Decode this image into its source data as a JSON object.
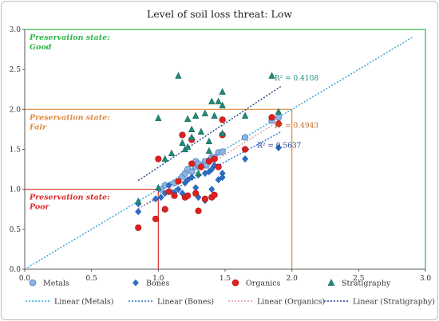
{
  "chart_data": {
    "type": "scatter",
    "title": "Level of soil loss threat: Low",
    "xlabel": "",
    "ylabel": "",
    "xlim": [
      0.0,
      3.0
    ],
    "ylim": [
      0.0,
      3.0
    ],
    "x_ticks": [
      "0.0",
      "0.5",
      "1.0",
      "1.5",
      "2.0",
      "2.5",
      "3.0"
    ],
    "y_ticks": [
      "0.0",
      "0.5",
      "1.0",
      "1.5",
      "2.0",
      "2.5",
      "3.0"
    ],
    "grid": false,
    "legend_position": "bottom",
    "zones": [
      {
        "label_line1": "Preservation state:",
        "label_line2": "Good",
        "limit": 3.0,
        "color": "#2db84a"
      },
      {
        "label_line1": "Preservation state:",
        "label_line2": "Fair",
        "limit": 2.0,
        "color": "#e08a3c"
      },
      {
        "label_line1": "Preservation state:",
        "label_line2": "Poor",
        "limit": 1.0,
        "color": "#d92b2b"
      }
    ],
    "series": [
      {
        "name": "Metals",
        "marker": "circle",
        "color": "#8db3e2",
        "stroke": "#2f6fb5",
        "points": [
          [
            1.02,
            1.0
          ],
          [
            1.05,
            1.05
          ],
          [
            1.12,
            1.08
          ],
          [
            1.18,
            1.16
          ],
          [
            1.2,
            1.2
          ],
          [
            1.22,
            1.25
          ],
          [
            1.25,
            1.22
          ],
          [
            1.28,
            1.28
          ],
          [
            1.3,
            1.3
          ],
          [
            1.32,
            1.3
          ],
          [
            1.35,
            1.35
          ],
          [
            1.38,
            1.36
          ],
          [
            1.4,
            1.4
          ],
          [
            1.42,
            1.4
          ],
          [
            1.45,
            1.46
          ],
          [
            1.48,
            1.47
          ],
          [
            1.65,
            1.65
          ],
          [
            1.85,
            1.86
          ],
          [
            1.9,
            1.9
          ],
          [
            1.28,
            1.35
          ],
          [
            1.3,
            1.32
          ],
          [
            1.36,
            1.3
          ]
        ]
      },
      {
        "name": "Bones",
        "marker": "diamond",
        "color": "#2a6fc9",
        "stroke": "#1c4f94",
        "points": [
          [
            0.85,
            0.72
          ],
          [
            0.85,
            0.82
          ],
          [
            0.98,
            0.88
          ],
          [
            1.02,
            0.9
          ],
          [
            1.05,
            0.95
          ],
          [
            1.08,
            1.05
          ],
          [
            1.12,
            0.96
          ],
          [
            1.15,
            1.0
          ],
          [
            1.18,
            0.95
          ],
          [
            1.2,
            1.08
          ],
          [
            1.22,
            1.12
          ],
          [
            1.25,
            1.15
          ],
          [
            1.28,
            1.02
          ],
          [
            1.3,
            1.18
          ],
          [
            1.32,
            1.28
          ],
          [
            1.35,
            1.2
          ],
          [
            1.38,
            1.22
          ],
          [
            1.4,
            1.25
          ],
          [
            1.42,
            1.3
          ],
          [
            1.45,
            1.12
          ],
          [
            1.48,
            1.2
          ],
          [
            1.48,
            1.15
          ],
          [
            1.65,
            1.38
          ],
          [
            1.9,
            1.52
          ],
          [
            1.3,
            0.9
          ],
          [
            1.35,
            0.86
          ],
          [
            1.4,
            1.0
          ]
        ]
      },
      {
        "name": "Organics",
        "marker": "circle",
        "color": "#e02020",
        "stroke": "#a81414",
        "points": [
          [
            0.85,
            0.52
          ],
          [
            0.98,
            0.63
          ],
          [
            1.0,
            1.38
          ],
          [
            1.05,
            0.75
          ],
          [
            1.08,
            0.97
          ],
          [
            1.12,
            0.92
          ],
          [
            1.15,
            1.1
          ],
          [
            1.18,
            1.68
          ],
          [
            1.2,
            0.9
          ],
          [
            1.22,
            0.92
          ],
          [
            1.25,
            1.32
          ],
          [
            1.25,
            1.62
          ],
          [
            1.28,
            0.95
          ],
          [
            1.3,
            0.73
          ],
          [
            1.32,
            1.28
          ],
          [
            1.35,
            0.88
          ],
          [
            1.38,
            1.35
          ],
          [
            1.4,
            0.9
          ],
          [
            1.42,
            0.93
          ],
          [
            1.45,
            1.28
          ],
          [
            1.48,
            1.68
          ],
          [
            1.48,
            1.87
          ],
          [
            1.65,
            1.5
          ],
          [
            1.85,
            1.9
          ],
          [
            1.9,
            1.82
          ],
          [
            1.42,
            1.38
          ]
        ]
      },
      {
        "name": "Stratigraphy",
        "marker": "triangle",
        "color": "#1f8a78",
        "stroke": "#0f5c50",
        "points": [
          [
            0.85,
            0.85
          ],
          [
            1.0,
            1.02
          ],
          [
            1.0,
            1.89
          ],
          [
            1.05,
            1.38
          ],
          [
            1.1,
            1.45
          ],
          [
            1.15,
            2.42
          ],
          [
            1.18,
            1.58
          ],
          [
            1.2,
            1.5
          ],
          [
            1.22,
            1.88
          ],
          [
            1.25,
            1.75
          ],
          [
            1.25,
            1.65
          ],
          [
            1.28,
            1.92
          ],
          [
            1.3,
            1.2
          ],
          [
            1.32,
            1.72
          ],
          [
            1.35,
            1.95
          ],
          [
            1.38,
            1.6
          ],
          [
            1.4,
            2.1
          ],
          [
            1.42,
            1.92
          ],
          [
            1.45,
            2.1
          ],
          [
            1.48,
            2.22
          ],
          [
            1.48,
            2.05
          ],
          [
            1.48,
            1.7
          ],
          [
            1.65,
            1.92
          ],
          [
            1.85,
            2.42
          ],
          [
            1.9,
            1.97
          ],
          [
            1.22,
            1.53
          ],
          [
            1.38,
            1.48
          ]
        ]
      }
    ],
    "trendlines": [
      {
        "name": "Linear (Metals)",
        "color": "#2ba6d9",
        "dash": "2,2",
        "from": [
          0.0,
          0.0
        ],
        "to": [
          2.9,
          2.9
        ]
      },
      {
        "name": "Linear (Bones)",
        "color": "#2a6fc9",
        "dash": "2,2",
        "from": [
          0.85,
          0.76
        ],
        "to": [
          1.92,
          1.72
        ],
        "r2": "R² = 0.5637",
        "r2_at": [
          1.74,
          1.55
        ],
        "r2_color": "#1f3f8a"
      },
      {
        "name": "Linear (Organics)",
        "color": "#e69a9a",
        "dash": "2,2",
        "from": [
          0.85,
          0.76
        ],
        "to": [
          1.92,
          1.87
        ],
        "r2": "R² = 0.4943",
        "r2_at": [
          1.87,
          1.8
        ],
        "r2_color": "#c0661e"
      },
      {
        "name": "Linear (Stratigraphy)",
        "color": "#1f3f8a",
        "dash": "2,2",
        "from": [
          0.85,
          1.11
        ],
        "to": [
          1.92,
          2.29
        ],
        "r2": "R² = 0.4108",
        "r2_at": [
          1.87,
          2.39
        ],
        "r2_color": "#1f8a78"
      }
    ],
    "legend": [
      {
        "label": "Metals",
        "kind": "marker",
        "ref": "Metals"
      },
      {
        "label": "Bones",
        "kind": "marker",
        "ref": "Bones"
      },
      {
        "label": "Organics",
        "kind": "marker",
        "ref": "Organics"
      },
      {
        "label": "Stratigraphy",
        "kind": "marker",
        "ref": "Stratigraphy"
      },
      {
        "label": "Linear (Metals)",
        "kind": "line",
        "ref": "Linear (Metals)"
      },
      {
        "label": "Linear (Bones)",
        "kind": "line",
        "ref": "Linear (Bones)"
      },
      {
        "label": "Linear (Organics)",
        "kind": "line",
        "ref": "Linear (Organics)"
      },
      {
        "label": "Linear (Stratigraphy)",
        "kind": "line",
        "ref": "Linear (Stratigraphy)"
      }
    ]
  }
}
